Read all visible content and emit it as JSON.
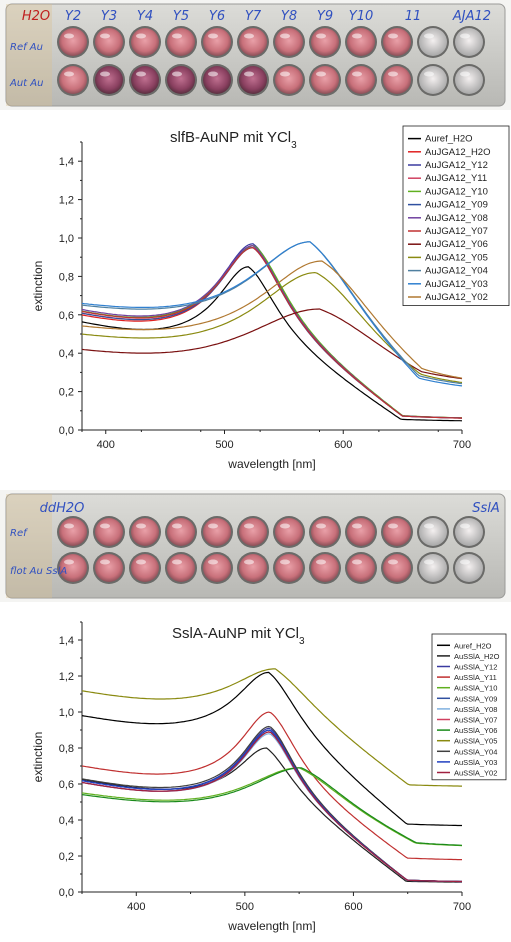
{
  "plates": [
    {
      "top_labels": [
        "H2O",
        "Y2",
        "Y3",
        "Y4",
        "Y5",
        "Y6",
        "Y7",
        "Y8",
        "Y9",
        "Y10",
        "11",
        "AJA12"
      ],
      "row_labels": [
        "Ref Au",
        "Aut Au"
      ]
    },
    {
      "top_labels": [
        "ddH2O",
        "SslA"
      ],
      "row_labels": [
        "Ref",
        "flot Au SslA"
      ]
    }
  ],
  "colors": {
    "Aref_H2O": "#000000",
    "H2O": "#e02020",
    "Y12": "#3a3aa0",
    "Y11": "#d04060",
    "Y10": "#60b020",
    "Y09": "#3050a0",
    "Y08": "#7040a0",
    "Y07": "#c03030",
    "Y06": "#7a1010",
    "Y05": "#8a8a10",
    "Y04": "#5080a0",
    "Y03": "#3080d0",
    "Y02": "#b07830",
    "Y06b": "#1a8a1a"
  },
  "chart_data": [
    {
      "type": "line",
      "title": "slfB-AuNP mit YCl",
      "title_sub": "3",
      "xlabel": "wavelength [nm]",
      "ylabel": "extinction",
      "xlim": [
        380,
        700
      ],
      "ylim": [
        0,
        1.5
      ],
      "xticks": [
        400,
        500,
        600,
        700
      ],
      "yticks": [
        "0,0",
        "0,2",
        "0,4",
        "0,6",
        "0,8",
        "1,0",
        "1,2",
        "1,4"
      ],
      "legend_position": "top-right",
      "series": [
        {
          "name": "Auref_H2O",
          "color": "#000000",
          "base": 0.55,
          "peak": 0.85,
          "center": 520,
          "width": 30,
          "tail": 0.04
        },
        {
          "name": "AuJGA12_H2O",
          "color": "#e02020",
          "base": 0.58,
          "peak": 0.96,
          "center": 524,
          "width": 33,
          "tail": 0.05
        },
        {
          "name": "AuJGA12_Y12",
          "color": "#3a3aa0",
          "base": 0.6,
          "peak": 0.97,
          "center": 524,
          "width": 33,
          "tail": 0.05
        },
        {
          "name": "AuJGA12_Y11",
          "color": "#d04060",
          "base": 0.59,
          "peak": 0.96,
          "center": 524,
          "width": 33,
          "tail": 0.05
        },
        {
          "name": "AuJGA12_Y10",
          "color": "#60b020",
          "base": 0.6,
          "peak": 0.96,
          "center": 525,
          "width": 34,
          "tail": 0.05
        },
        {
          "name": "AuJGA12_Y09",
          "color": "#3050a0",
          "base": 0.59,
          "peak": 0.95,
          "center": 524,
          "width": 33,
          "tail": 0.05
        },
        {
          "name": "AuJGA12_Y08",
          "color": "#7040a0",
          "base": 0.61,
          "peak": 0.96,
          "center": 524,
          "width": 33,
          "tail": 0.05
        },
        {
          "name": "AuJGA12_Y07",
          "color": "#c03030",
          "base": 0.6,
          "peak": 0.95,
          "center": 524,
          "width": 33,
          "tail": 0.05
        },
        {
          "name": "AuJGA12_Y06",
          "color": "#7a1010",
          "base": 0.39,
          "peak": 0.63,
          "center": 580,
          "width": 75,
          "tail": 0.2
        },
        {
          "name": "AuJGA12_Y05",
          "color": "#8a8a10",
          "base": 0.47,
          "peak": 0.82,
          "center": 577,
          "width": 60,
          "tail": 0.18
        },
        {
          "name": "AuJGA12_Y04",
          "color": "#5080a0",
          "base": 0.62,
          "peak": 0.98,
          "center": 572,
          "width": 58,
          "tail": 0.18
        },
        {
          "name": "AuJGA12_Y03",
          "color": "#3080d0",
          "base": 0.63,
          "peak": 0.98,
          "center": 572,
          "width": 58,
          "tail": 0.17
        },
        {
          "name": "AuJGA12_Y02",
          "color": "#b07830",
          "base": 0.51,
          "peak": 0.88,
          "center": 582,
          "width": 62,
          "tail": 0.19
        }
      ]
    },
    {
      "type": "line",
      "title": "SslA-AuNP mit YCl",
      "title_sub": "3",
      "xlabel": "wavelength [nm]",
      "ylabel": "extinction",
      "xlim": [
        350,
        700
      ],
      "ylim": [
        0,
        1.5
      ],
      "xticks": [
        400,
        500,
        600,
        700
      ],
      "yticks": [
        "0,0",
        "0,2",
        "0,4",
        "0,6",
        "0,8",
        "1,0",
        "1,2",
        "1,4"
      ],
      "legend_position": "top-right",
      "series": [
        {
          "name": "Auref_H2O",
          "color": "#000000",
          "base": 0.97,
          "peak": 1.22,
          "center": 522,
          "width": 35,
          "tail": 0.36
        },
        {
          "name": "AuSSlA_H2O",
          "color": "#202020",
          "base": 0.62,
          "peak": 0.8,
          "center": 520,
          "width": 30,
          "tail": 0.05
        },
        {
          "name": "AuSSlA_Y12",
          "color": "#3a3aa0",
          "base": 0.61,
          "peak": 0.91,
          "center": 523,
          "width": 30,
          "tail": 0.05
        },
        {
          "name": "AuSSlA_Y11",
          "color": "#c03030",
          "base": 0.69,
          "peak": 1.0,
          "center": 523,
          "width": 32,
          "tail": 0.17
        },
        {
          "name": "AuSSlA_Y10",
          "color": "#60b020",
          "base": 0.54,
          "peak": 0.69,
          "center": 550,
          "width": 55,
          "tail": 0.24
        },
        {
          "name": "AuSSlA_Y09",
          "color": "#3050a0",
          "base": 0.6,
          "peak": 0.9,
          "center": 523,
          "width": 30,
          "tail": 0.05
        },
        {
          "name": "AuSSlA_Y08",
          "color": "#80b0e0",
          "base": 0.6,
          "peak": 0.88,
          "center": 523,
          "width": 30,
          "tail": 0.05
        },
        {
          "name": "AuSSlA_Y07",
          "color": "#d04060",
          "base": 0.6,
          "peak": 0.89,
          "center": 523,
          "width": 30,
          "tail": 0.05
        },
        {
          "name": "AuSSlA_Y06",
          "color": "#1a8a1a",
          "base": 0.53,
          "peak": 0.69,
          "center": 552,
          "width": 55,
          "tail": 0.24
        },
        {
          "name": "AuSSlA_Y05",
          "color": "#8a8a10",
          "base": 1.11,
          "peak": 1.24,
          "center": 528,
          "width": 45,
          "tail": 0.58
        },
        {
          "name": "AuSSlA_Y04",
          "color": "#404040",
          "base": 0.62,
          "peak": 0.92,
          "center": 523,
          "width": 30,
          "tail": 0.05
        },
        {
          "name": "AuSSlA_Y03",
          "color": "#2040c0",
          "base": 0.61,
          "peak": 0.9,
          "center": 523,
          "width": 30,
          "tail": 0.05
        },
        {
          "name": "AuSSlA_Y02",
          "color": "#a02040",
          "base": 0.6,
          "peak": 0.89,
          "center": 523,
          "width": 30,
          "tail": 0.05
        }
      ]
    }
  ]
}
